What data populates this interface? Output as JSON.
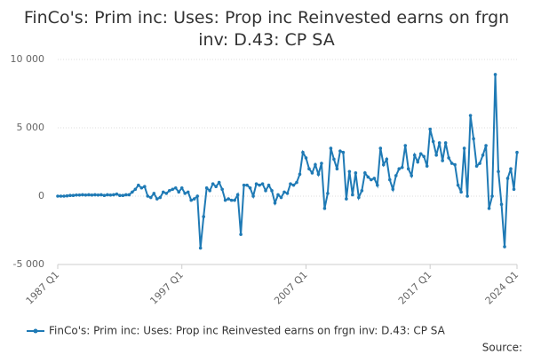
{
  "chart_data": {
    "type": "line",
    "title": "FinCo's: Prim inc: Uses: Prop inc Reinvested earns on frgn inv: D.43: CP SA",
    "source": "Source:",
    "categories": [
      "1987 Q1",
      null,
      null,
      null,
      null,
      null,
      null,
      null,
      null,
      null,
      null,
      null,
      null,
      null,
      null,
      null,
      null,
      null,
      null,
      null,
      null,
      null,
      null,
      null,
      null,
      null,
      null,
      null,
      null,
      null,
      null,
      null,
      null,
      null,
      null,
      null,
      null,
      null,
      null,
      null,
      "1997 Q1",
      null,
      null,
      null,
      null,
      null,
      null,
      null,
      null,
      null,
      null,
      null,
      null,
      null,
      null,
      null,
      null,
      null,
      null,
      null,
      null,
      null,
      null,
      null,
      null,
      null,
      null,
      null,
      null,
      null,
      null,
      null,
      null,
      null,
      null,
      null,
      null,
      null,
      null,
      null,
      "2007 Q1",
      null,
      null,
      null,
      null,
      null,
      null,
      null,
      null,
      null,
      null,
      null,
      null,
      null,
      null,
      null,
      null,
      null,
      null,
      null,
      null,
      null,
      null,
      null,
      null,
      null,
      null,
      null,
      null,
      null,
      null,
      null,
      null,
      null,
      null,
      null,
      null,
      null,
      null,
      null,
      "2017 Q1",
      null,
      null,
      null,
      null,
      null,
      null,
      null,
      null,
      null,
      null,
      null,
      null,
      null,
      null,
      null,
      null,
      null,
      null,
      null,
      null,
      null,
      null,
      null,
      null,
      null,
      null,
      null,
      "2024 Q1"
    ],
    "series": [
      {
        "name": "FinCo's: Prim inc: Uses: Prop inc Reinvested earns on frgn inv: D.43: CP SA",
        "color": "#1f7ab5",
        "values": [
          0,
          0,
          0,
          20,
          50,
          50,
          80,
          80,
          100,
          80,
          100,
          80,
          100,
          80,
          100,
          50,
          100,
          80,
          100,
          150,
          50,
          50,
          100,
          100,
          300,
          500,
          800,
          600,
          700,
          0,
          -100,
          200,
          -200,
          -100,
          300,
          200,
          400,
          500,
          600,
          300,
          600,
          200,
          300,
          -300,
          -200,
          0,
          -3800,
          -1500,
          600,
          400,
          900,
          700,
          1000,
          500,
          -300,
          -200,
          -300,
          -300,
          100,
          -2800,
          800,
          800,
          600,
          0,
          900,
          800,
          900,
          400,
          800,
          400,
          -500,
          100,
          -100,
          300,
          200,
          900,
          800,
          1000,
          1600,
          3200,
          2800,
          2000,
          1700,
          2300,
          1600,
          2400,
          -900,
          200,
          3500,
          2700,
          2000,
          3300,
          3200,
          -200,
          1800,
          100,
          1700,
          -100,
          400,
          1700,
          1400,
          1200,
          1300,
          800,
          3500,
          2300,
          2700,
          1200,
          500,
          1500,
          2000,
          2100,
          3700,
          2000,
          1500,
          3000,
          2500,
          3100,
          2900,
          2200,
          4900,
          4000,
          3000,
          3900,
          2600,
          3900,
          2800,
          2400,
          2300,
          800,
          300,
          3500,
          0,
          5900,
          4200,
          2200,
          2400,
          3000,
          3700,
          -900,
          0,
          8900,
          1800,
          -600,
          -3700,
          1300,
          2000,
          500,
          3200
        ]
      }
    ],
    "ylim": [
      -5000,
      10000
    ],
    "yticks": [
      {
        "value": -5000,
        "label": "-5 000"
      },
      0,
      {
        "value": 5000,
        "label": "5 000"
      },
      {
        "value": 10000,
        "label": "10 000"
      }
    ],
    "grid": true
  }
}
